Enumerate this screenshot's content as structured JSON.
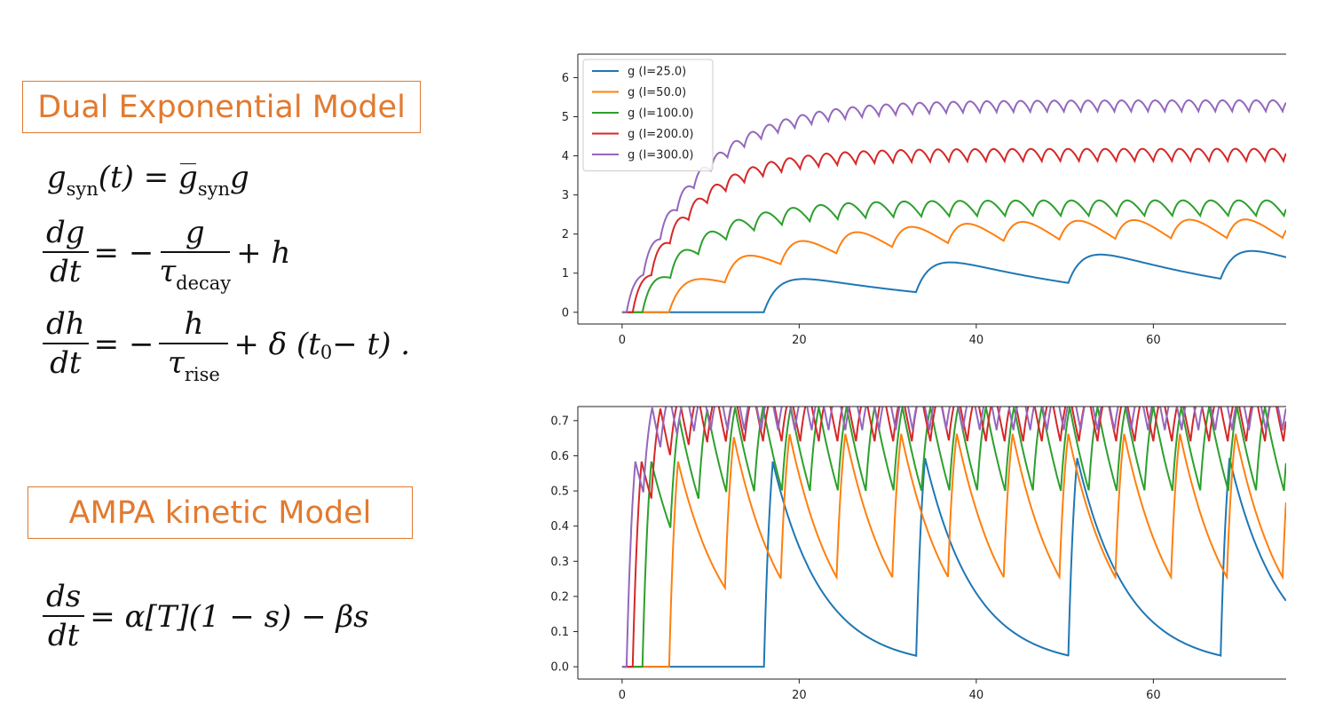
{
  "titles": {
    "dual": "Dual Exponential Model",
    "ampa": "AMPA kinetic Model"
  },
  "equations": {
    "g_syn_lhs_base": "g",
    "g_syn_lhs_sub": "syn",
    "g_syn_lhs_arg": "(t) = ",
    "g_syn_rhs_base": "g",
    "g_syn_rhs_sub": "syn",
    "g_syn_rhs_tail": "g",
    "dg_num": "dg",
    "dg_den": "dt",
    "dg_mid": "= −",
    "dg_frac_num": "g",
    "dg_frac_den_base": "τ",
    "dg_frac_den_sub": "decay",
    "dg_tail": "+ h",
    "dh_num": "dh",
    "dh_den": "dt",
    "dh_mid": "= −",
    "dh_frac_num": "h",
    "dh_frac_den_base": "τ",
    "dh_frac_den_sub": "rise",
    "dh_tail_a": "+ δ (t",
    "dh_tail_sub": "0",
    "dh_tail_b": " − t) .",
    "ds_num": "ds",
    "ds_den": "dt",
    "ds_rhs": "= α[T](1 − s) − βs"
  },
  "chart_data": [
    {
      "type": "line",
      "title": "",
      "xlabel": "",
      "ylabel": "",
      "xlim": [
        -5,
        75
      ],
      "ylim": [
        -0.3,
        6.6
      ],
      "xticks": [
        0,
        20,
        40,
        60
      ],
      "yticks": [
        0,
        1,
        2,
        3,
        4,
        5,
        6
      ],
      "legend_position": "top-left",
      "series": [
        {
          "name": "g (I=25.0)",
          "color": "#1f77b4",
          "onset": 16.0,
          "period": 17.2,
          "peak": 0.85,
          "rise": 1.6,
          "decay": 22.0
        },
        {
          "name": "g (I=50.0)",
          "color": "#ff7f0e",
          "onset": 5.3,
          "period": 6.3,
          "peak": 0.85,
          "rise": 1.6,
          "decay": 12.0
        },
        {
          "name": "g (I=100.0)",
          "color": "#2ca02c",
          "onset": 2.3,
          "period": 3.15,
          "peak": 0.9,
          "rise": 1.2,
          "decay": 6.5
        },
        {
          "name": "g (I=200.0)",
          "color": "#d62728",
          "onset": 1.2,
          "period": 2.1,
          "peak": 0.95,
          "rise": 1.1,
          "decay": 6.2
        },
        {
          "name": "g (I=300.0)",
          "color": "#9467bd",
          "onset": 0.5,
          "period": 1.9,
          "peak": 0.98,
          "rise": 1.1,
          "decay": 7.4
        }
      ]
    },
    {
      "type": "line",
      "title": "",
      "xlabel": "",
      "ylabel": "",
      "xlim": [
        -5,
        75
      ],
      "ylim": [
        -0.035,
        0.74
      ],
      "xticks": [
        0,
        20,
        40,
        60
      ],
      "yticks": [
        0.0,
        0.1,
        0.2,
        0.3,
        0.4,
        0.5,
        0.6,
        0.7
      ],
      "legend_position": "none",
      "yticklabels": [
        "0.0",
        "0.1",
        "0.2",
        "0.3",
        "0.4",
        "0.5",
        "0.6",
        "0.7"
      ],
      "series": [
        {
          "name": "",
          "color": "#1f77b4",
          "onset": 16.0,
          "period": 17.2,
          "alpha": 0.98,
          "beta": 0.18
        },
        {
          "name": "",
          "color": "#ff7f0e",
          "onset": 5.3,
          "period": 6.3,
          "alpha": 0.98,
          "beta": 0.18
        },
        {
          "name": "",
          "color": "#2ca02c",
          "onset": 2.3,
          "period": 3.15,
          "alpha": 0.98,
          "beta": 0.18
        },
        {
          "name": "",
          "color": "#d62728",
          "onset": 1.2,
          "period": 2.1,
          "alpha": 0.98,
          "beta": 0.18
        },
        {
          "name": "",
          "color": "#9467bd",
          "onset": 0.5,
          "period": 1.9,
          "alpha": 0.98,
          "beta": 0.18
        }
      ]
    }
  ]
}
